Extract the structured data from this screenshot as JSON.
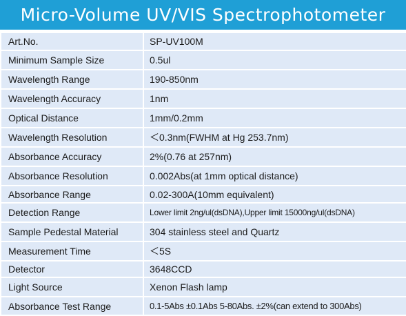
{
  "title": "Micro-Volume UV/VIS Spectrophotometer",
  "rows": [
    {
      "label": "Art.No.",
      "value": "SP-UV100M"
    },
    {
      "label": "Minimum Sample Size",
      "value": "0.5ul"
    },
    {
      "label": "Wavelength Range",
      "value": "190-850nm"
    },
    {
      "label": "Wavelength Accuracy",
      "value": "1nm"
    },
    {
      "label": "Optical Distance",
      "value": "1mm/0.2mm"
    },
    {
      "label": "Wavelength Resolution",
      "value": "＜0.3nm(FWHM at Hg 253.7nm)"
    },
    {
      "label": "Absorbance Accuracy",
      "value": "2%(0.76 at 257nm)"
    },
    {
      "label": "Absorbance Resolution",
      "value": "0.002Abs(at 1mm optical distance)"
    },
    {
      "label": "Absorbance Range",
      "value": "0.02-300A(10mm equivalent)"
    },
    {
      "label": "Detection Range",
      "value": "Lower limit 2ng/ul(dsDNA),Upper limit 15000ng/ul(dsDNA)"
    },
    {
      "label": "Sample Pedestal Material",
      "value": "304 stainless steel and Quartz"
    },
    {
      "label": "Measurement Time",
      "value": "＜5S"
    },
    {
      "label": "Detector",
      "value": "3648CCD"
    },
    {
      "label": "Light Source",
      "value": "Xenon Flash lamp"
    },
    {
      "label": "Absorbance Test Range",
      "value": "0.1-5Abs ±0.1Abs  5-80Abs. ±2%(can extend to 300Abs)"
    }
  ]
}
